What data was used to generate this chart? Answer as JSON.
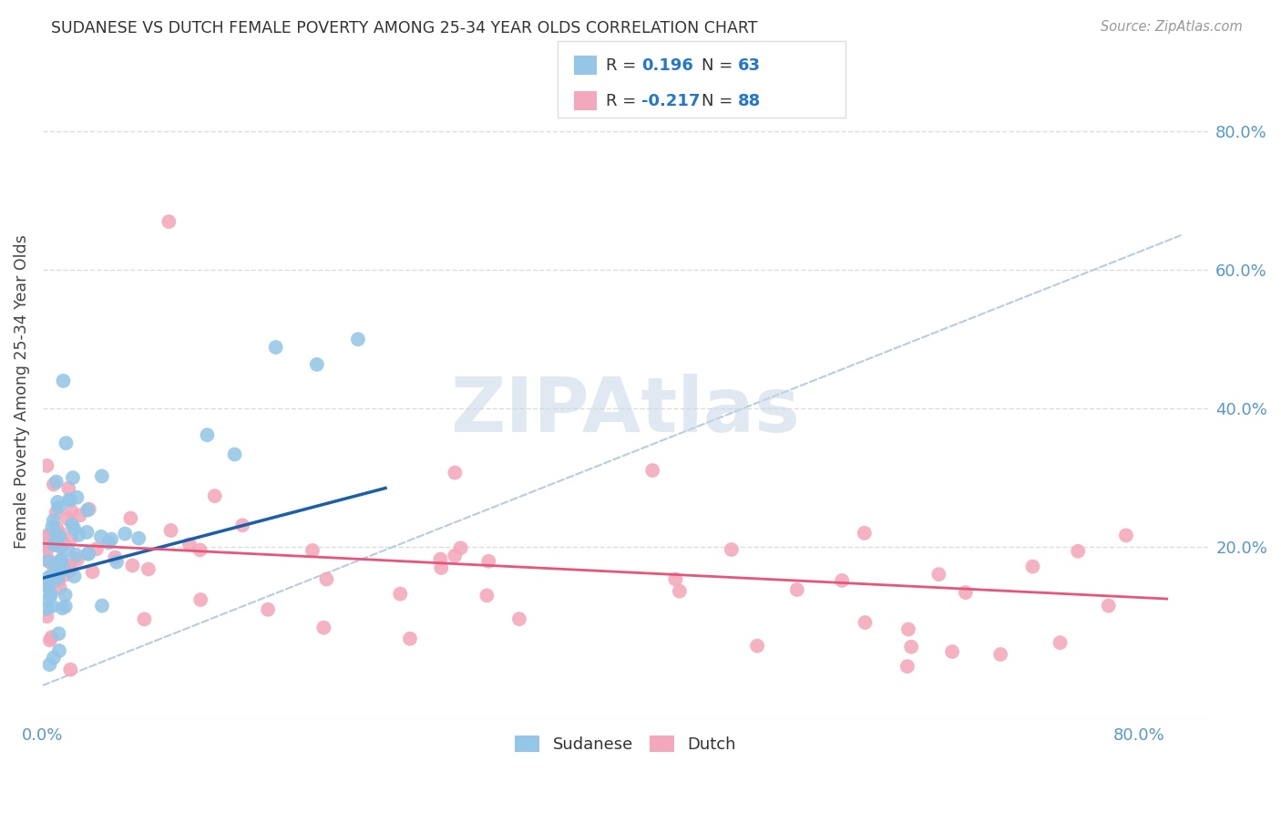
{
  "title": "SUDANESE VS DUTCH FEMALE POVERTY AMONG 25-34 YEAR OLDS CORRELATION CHART",
  "source": "Source: ZipAtlas.com",
  "ylabel": "Female Poverty Among 25-34 Year Olds",
  "xlim": [
    0.0,
    0.85
  ],
  "ylim": [
    -0.05,
    0.9
  ],
  "sudanese_R": 0.196,
  "sudanese_N": 63,
  "dutch_R": -0.217,
  "dutch_N": 88,
  "sudanese_color": "#94C6E7",
  "dutch_color": "#F4A8BB",
  "sudanese_line_color": "#1A5FA8",
  "dutch_line_color": "#E8547A",
  "dashed_line_color": "#B8CCE0",
  "watermark": "ZIPAtlas",
  "watermark_color": "#C8D8E8",
  "grid_color": "#DDDDDD",
  "background_color": "#FFFFFF",
  "legend_R_color": "#2277CC",
  "legend_N_color": "#2277CC",
  "tick_color": "#5599CC",
  "title_color": "#333333",
  "source_color": "#999999",
  "ylabel_color": "#444444"
}
